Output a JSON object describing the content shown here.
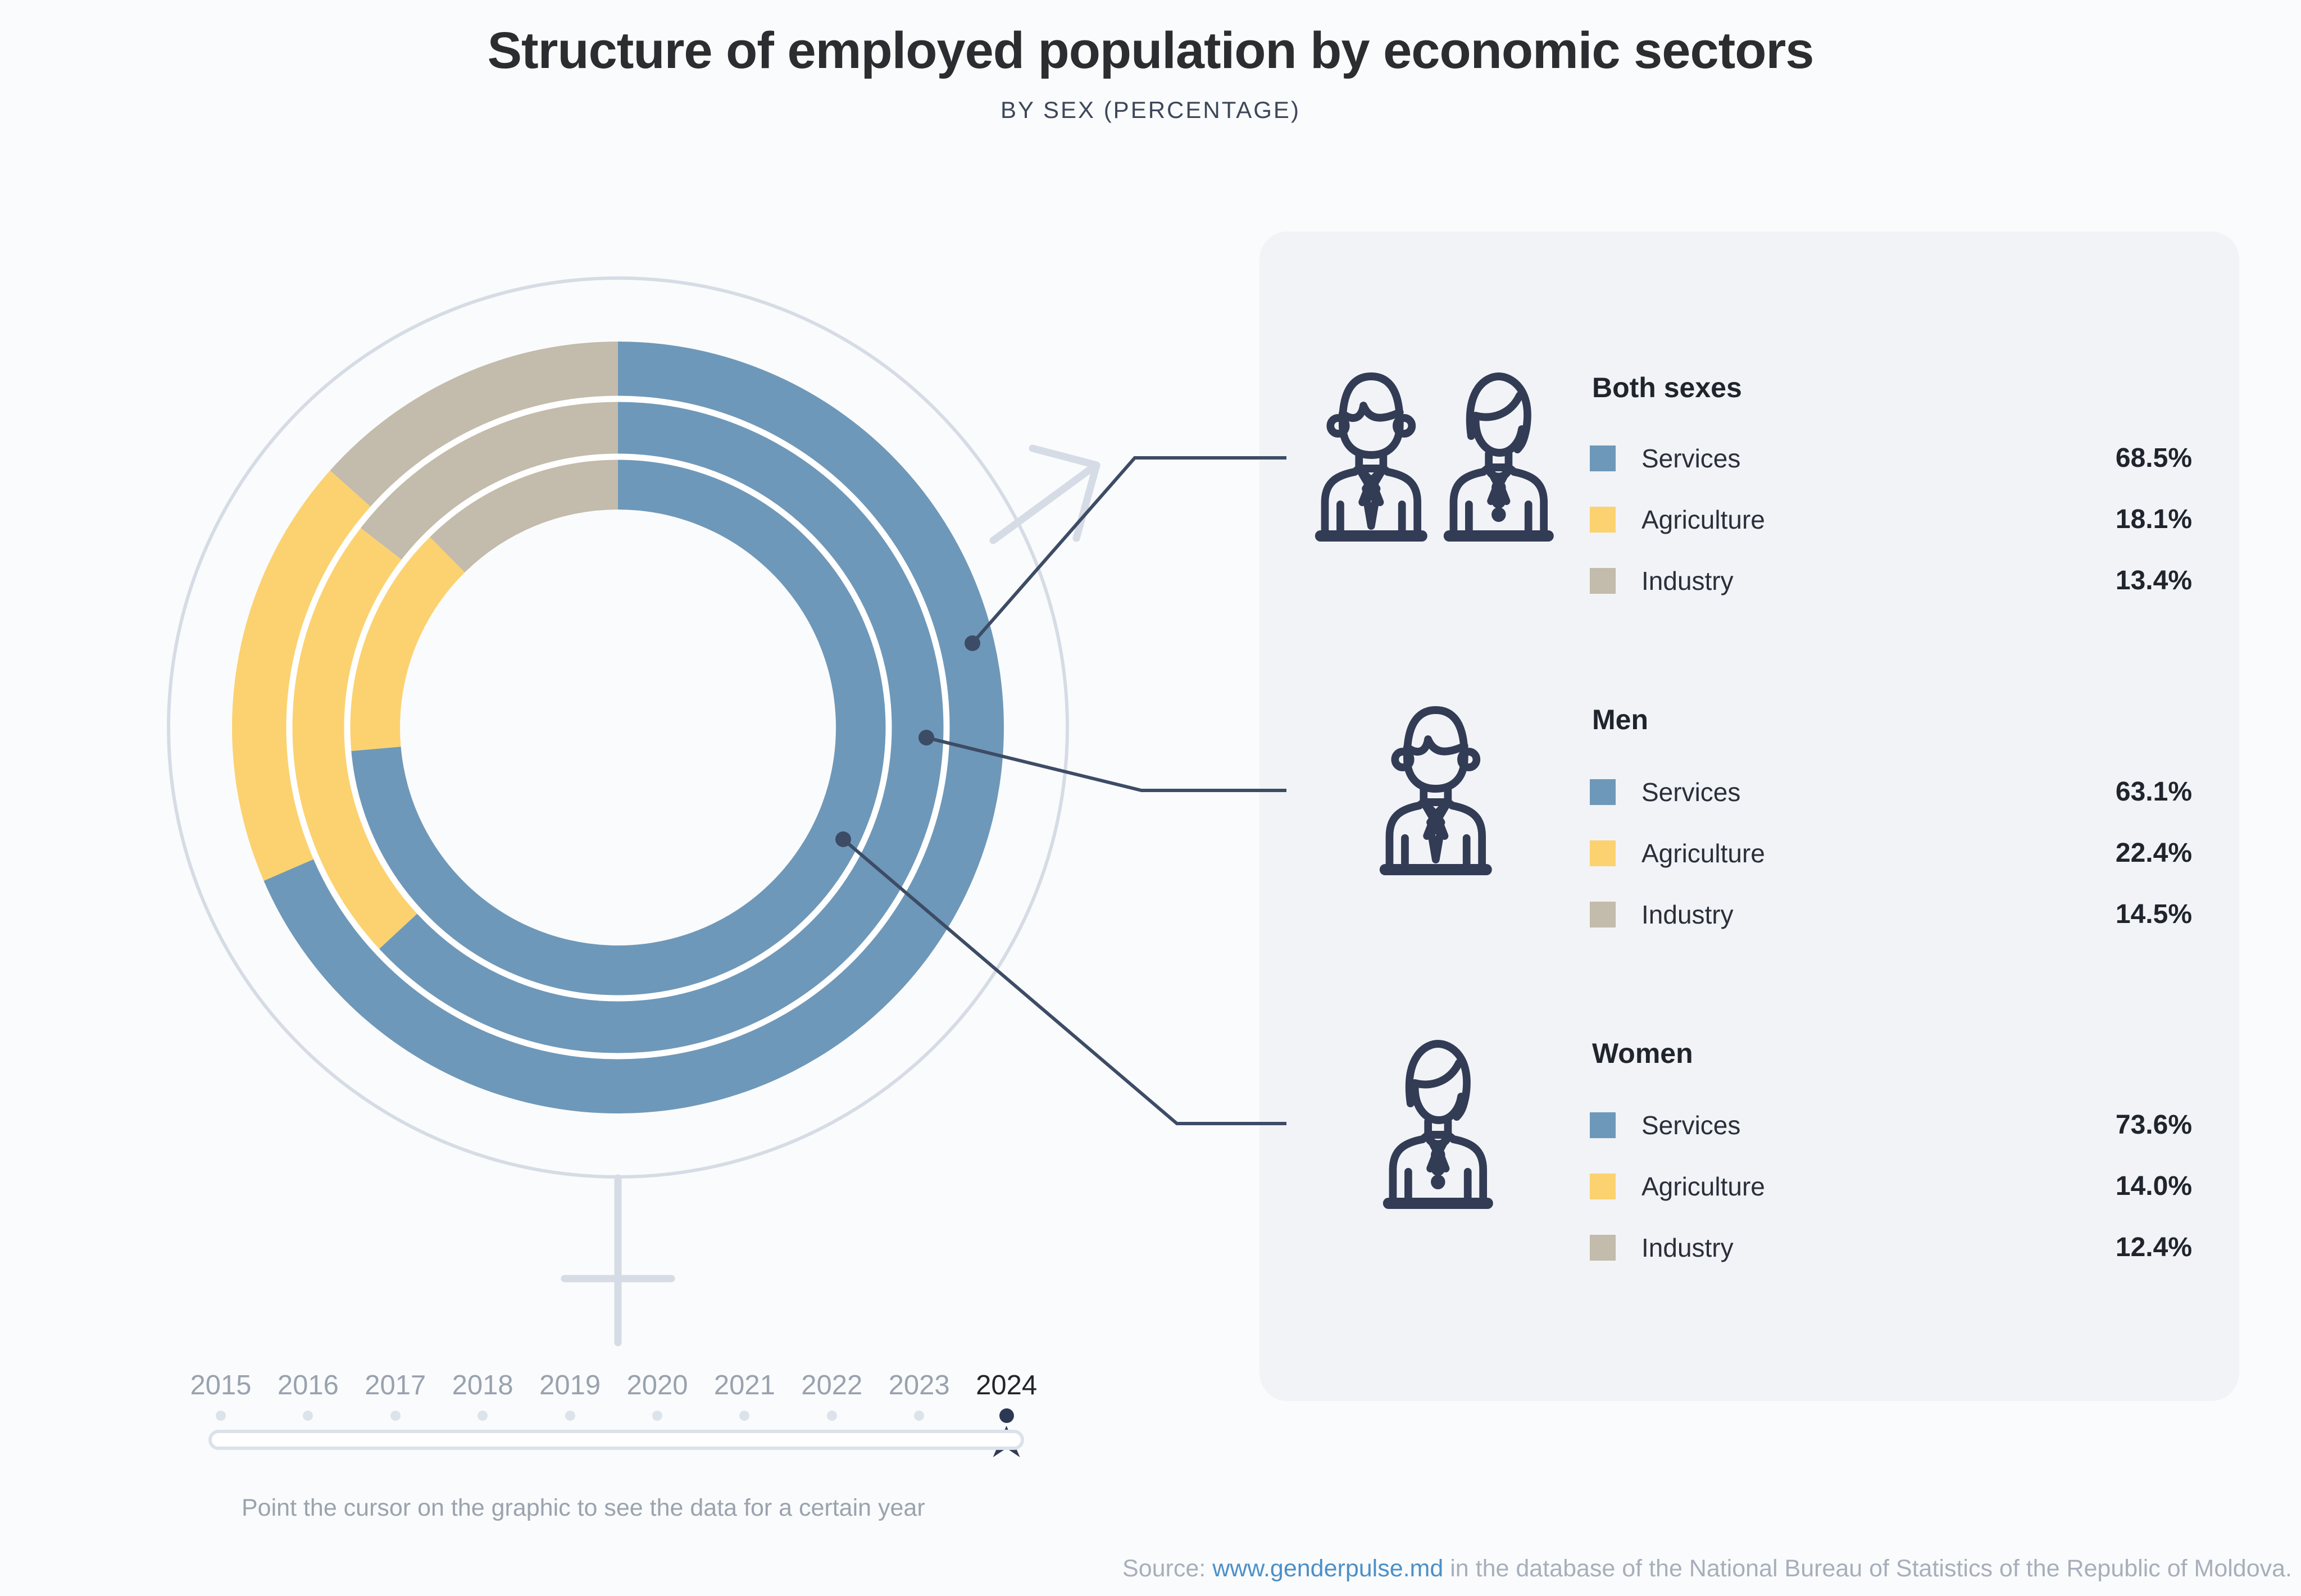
{
  "title": "Structure of employed population by economic sectors",
  "subtitle": "BY SEX (PERCENTAGE)",
  "hint": "Point the cursor on the graphic to see the data for a certain year",
  "source": {
    "prefix": "Source:",
    "link_text": "www.genderpulse.md",
    "suffix": "in the database of the National Bureau of Statistics of the Republic of Moldova."
  },
  "years": {
    "labels": [
      "2015",
      "2016",
      "2017",
      "2018",
      "2019",
      "2020",
      "2021",
      "2022",
      "2023",
      "2024"
    ],
    "selected": "2024"
  },
  "colors": {
    "services": "#6e98b9",
    "agriculture": "#fbd26f",
    "industry": "#c3bbab",
    "leader_line": "#3d4c66",
    "gender_symbol": "#d6dce5",
    "separator": "#ffffff",
    "year_active": "#22252b",
    "year_inactive": "#99a2ae",
    "dot_inactive": "#dde3ea",
    "dot_active": "#2d3954",
    "link": "#4c90c8"
  },
  "chart_data": {
    "type": "pie",
    "subtype": "multi-ring-donut",
    "unit": "%",
    "year_shown": "2024",
    "direction": "clockwise",
    "start_angle_deg": 0,
    "sectors": [
      "Services",
      "Agriculture",
      "Industry"
    ],
    "sector_colors": [
      "#6e98b9",
      "#fbd26f",
      "#c3bbab"
    ],
    "rings": [
      {
        "name": "Both sexes",
        "position": "outer",
        "values": [
          68.5,
          18.1,
          13.4
        ]
      },
      {
        "name": "Men",
        "position": "middle",
        "values": [
          63.1,
          22.4,
          14.5
        ]
      },
      {
        "name": "Women",
        "position": "inner",
        "values": [
          73.6,
          14.0,
          12.4
        ]
      }
    ]
  },
  "legend": {
    "groups": [
      {
        "title": "Both sexes",
        "icon": "man-and-woman",
        "rows": [
          {
            "sector": "services",
            "label": "Services",
            "value": "68.5%"
          },
          {
            "sector": "agriculture",
            "label": "Agriculture",
            "value": "18.1%"
          },
          {
            "sector": "industry",
            "label": "Industry",
            "value": "13.4%"
          }
        ]
      },
      {
        "title": "Men",
        "icon": "man",
        "rows": [
          {
            "sector": "services",
            "label": "Services",
            "value": "63.1%"
          },
          {
            "sector": "agriculture",
            "label": "Agriculture",
            "value": "22.4%"
          },
          {
            "sector": "industry",
            "label": "Industry",
            "value": "14.5%"
          }
        ]
      },
      {
        "title": "Women",
        "icon": "woman",
        "rows": [
          {
            "sector": "services",
            "label": "Services",
            "value": "73.6%"
          },
          {
            "sector": "agriculture",
            "label": "Agriculture",
            "value": "14.0%"
          },
          {
            "sector": "industry",
            "label": "Industry",
            "value": "12.4%"
          }
        ]
      }
    ]
  }
}
